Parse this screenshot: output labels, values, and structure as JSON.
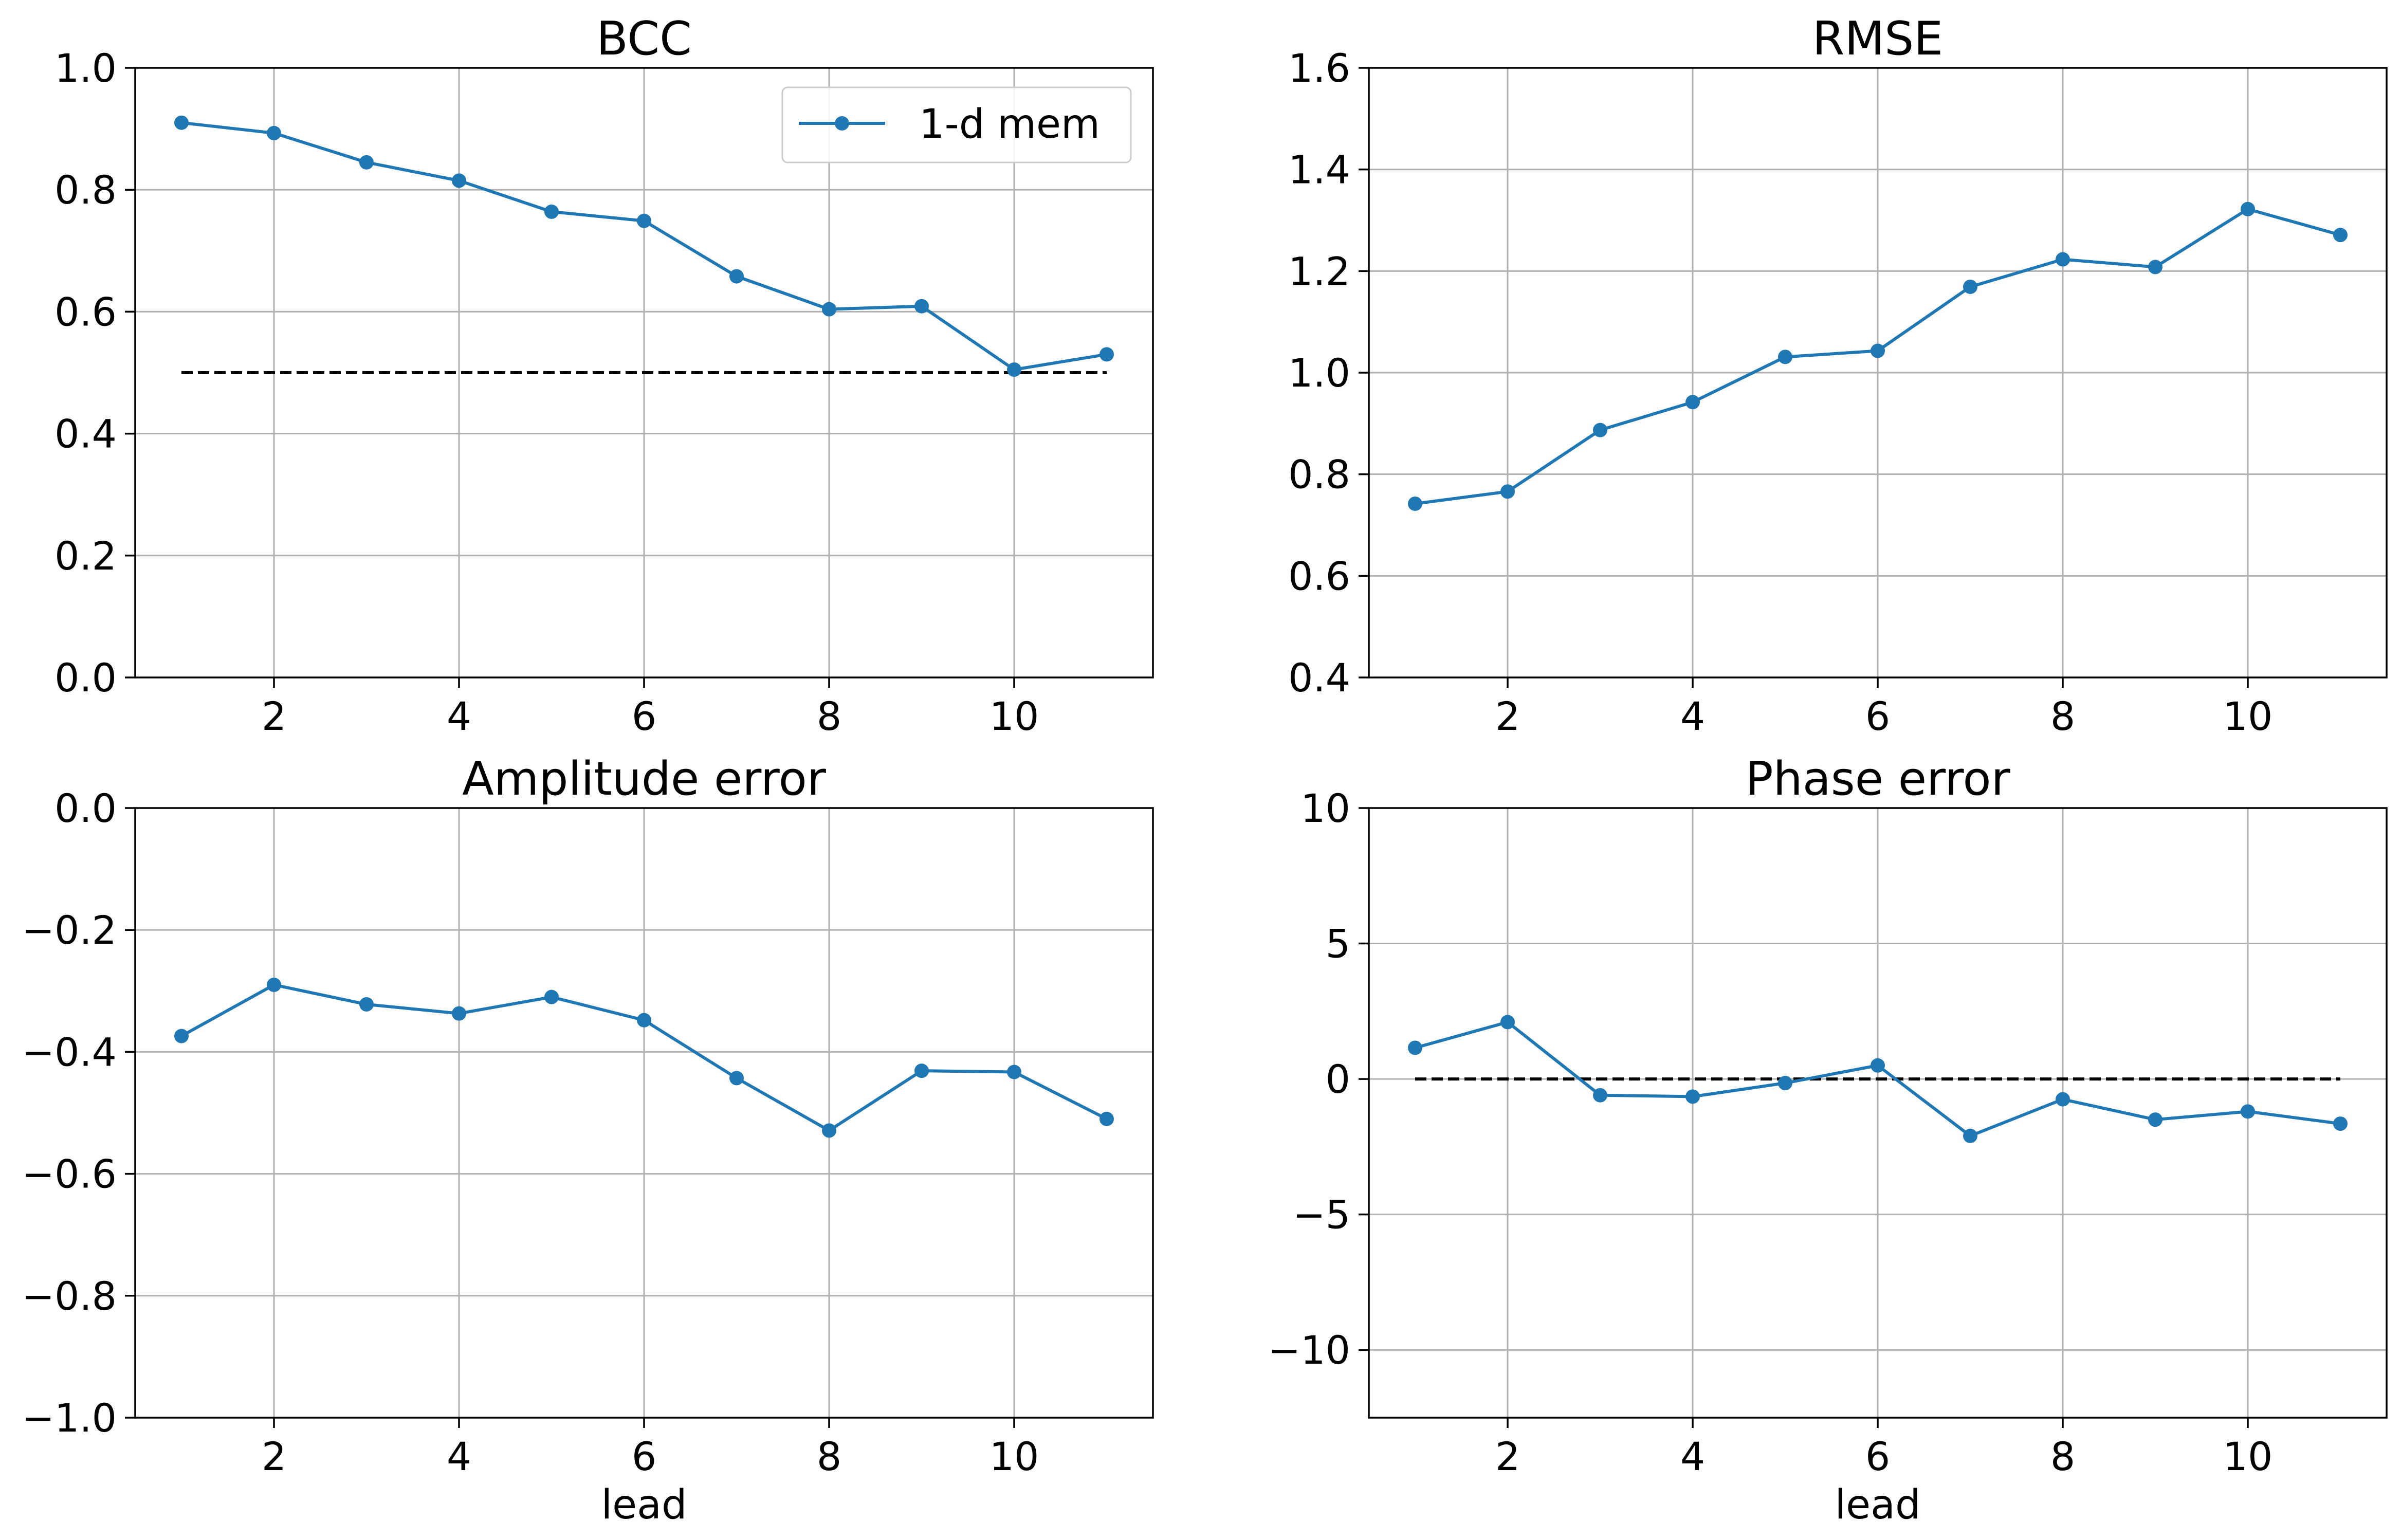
{
  "chart_data": [
    {
      "type": "line",
      "title": "BCC",
      "xlabel": "",
      "ylabel": "",
      "x": [
        1,
        2,
        3,
        4,
        5,
        6,
        7,
        8,
        9,
        10,
        11
      ],
      "xlim": [
        0.5,
        11.5
      ],
      "ylim": [
        0.0,
        1.0
      ],
      "xticks": [
        2,
        4,
        6,
        8,
        10
      ],
      "yticks": [
        0.0,
        0.2,
        0.4,
        0.6,
        0.8,
        1.0
      ],
      "ytick_labels": [
        "0.0",
        "0.2",
        "0.4",
        "0.6",
        "0.8",
        "1.0"
      ],
      "grid": true,
      "legend": "top-right",
      "series": [
        {
          "name": "1-d mem",
          "color": "#1f77b4",
          "values": [
            0.91,
            0.893,
            0.845,
            0.815,
            0.764,
            0.749,
            0.658,
            0.604,
            0.609,
            0.505,
            0.53
          ]
        }
      ],
      "reference_line": {
        "y": 0.5,
        "x": [
          1,
          11
        ],
        "color": "#000000",
        "style": "dashed"
      }
    },
    {
      "type": "line",
      "title": "RMSE",
      "xlabel": "",
      "ylabel": "",
      "x": [
        1,
        2,
        3,
        4,
        5,
        6,
        7,
        8,
        9,
        10,
        11
      ],
      "xlim": [
        0.5,
        11.5
      ],
      "ylim": [
        0.4,
        1.6
      ],
      "xticks": [
        2,
        4,
        6,
        8,
        10
      ],
      "yticks": [
        0.4,
        0.6,
        0.8,
        1.0,
        1.2,
        1.4,
        1.6
      ],
      "ytick_labels": [
        "0.4",
        "0.6",
        "0.8",
        "1.0",
        "1.2",
        "1.4",
        "1.6"
      ],
      "grid": true,
      "series": [
        {
          "color": "#1f77b4",
          "values": [
            0.742,
            0.766,
            0.887,
            0.942,
            1.031,
            1.043,
            1.169,
            1.223,
            1.208,
            1.322,
            1.271
          ]
        }
      ]
    },
    {
      "type": "line",
      "title": "Amplitude error",
      "xlabel": "lead",
      "ylabel": "",
      "x": [
        1,
        2,
        3,
        4,
        5,
        6,
        7,
        8,
        9,
        10,
        11
      ],
      "xlim": [
        0.5,
        11.5
      ],
      "ylim": [
        -1.0,
        0.0
      ],
      "xticks": [
        2,
        4,
        6,
        8,
        10
      ],
      "yticks": [
        -1.0,
        -0.8,
        -0.6,
        -0.4,
        -0.2,
        0.0
      ],
      "ytick_labels": [
        "−1.0",
        "−0.8",
        "−0.6",
        "−0.4",
        "−0.2",
        "0.0"
      ],
      "grid": true,
      "series": [
        {
          "color": "#1f77b4",
          "values": [
            -0.374,
            -0.29,
            -0.322,
            -0.337,
            -0.31,
            -0.348,
            -0.443,
            -0.529,
            -0.431,
            -0.433,
            -0.51
          ]
        }
      ]
    },
    {
      "type": "line",
      "title": "Phase error",
      "xlabel": "lead",
      "ylabel": "",
      "x": [
        1,
        2,
        3,
        4,
        5,
        6,
        7,
        8,
        9,
        10,
        11
      ],
      "xlim": [
        0.5,
        11.5
      ],
      "ylim": [
        -12.5,
        10.0
      ],
      "xticks": [
        2,
        4,
        6,
        8,
        10
      ],
      "yticks": [
        -10,
        -5,
        0,
        5,
        10
      ],
      "ytick_labels": [
        "−10",
        "−5",
        "0",
        "5",
        "10"
      ],
      "grid": true,
      "series": [
        {
          "color": "#1f77b4",
          "values": [
            1.15,
            2.1,
            -0.6,
            -0.65,
            -0.15,
            0.5,
            -2.1,
            -0.75,
            -1.5,
            -1.2,
            -1.65
          ]
        }
      ],
      "reference_line": {
        "y": 0,
        "x": [
          1,
          11
        ],
        "color": "#000000",
        "style": "dashed"
      }
    }
  ]
}
